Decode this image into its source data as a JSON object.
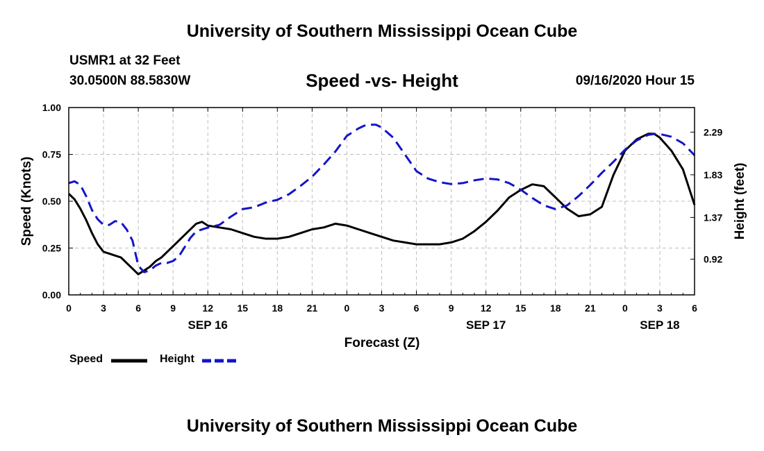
{
  "header": {
    "top_title": "University of Southern Mississippi Ocean Cube",
    "bottom_title": "University of Southern Mississippi Ocean Cube",
    "station_name": "USMR1 at 32 Feet",
    "station_location": "30.0500N 88.5830W",
    "datetime": "09/16/2020 Hour 15"
  },
  "chart_data": {
    "type": "line",
    "title": "Speed -vs- Height",
    "xlabel": "Forecast (Z)",
    "ylabel": "Speed (Knots)",
    "y2label": "Height (feet)",
    "xlim": [
      0,
      54
    ],
    "ylim": [
      0,
      1
    ],
    "y2lim": [
      0.535,
      2.555
    ],
    "grid": true,
    "x_ticks": [
      {
        "x": 0,
        "label": "0"
      },
      {
        "x": 3,
        "label": "3"
      },
      {
        "x": 6,
        "label": "6"
      },
      {
        "x": 9,
        "label": "9"
      },
      {
        "x": 12,
        "label": "12"
      },
      {
        "x": 15,
        "label": "15"
      },
      {
        "x": 18,
        "label": "18"
      },
      {
        "x": 21,
        "label": "21"
      },
      {
        "x": 24,
        "label": "0"
      },
      {
        "x": 27,
        "label": "3"
      },
      {
        "x": 30,
        "label": "6"
      },
      {
        "x": 33,
        "label": "9"
      },
      {
        "x": 36,
        "label": "12"
      },
      {
        "x": 39,
        "label": "15"
      },
      {
        "x": 42,
        "label": "18"
      },
      {
        "x": 45,
        "label": "21"
      },
      {
        "x": 48,
        "label": "0"
      },
      {
        "x": 51,
        "label": "3"
      },
      {
        "x": 54,
        "label": "6"
      }
    ],
    "date_labels": [
      {
        "x": 12,
        "label": "SEP 16"
      },
      {
        "x": 36,
        "label": "SEP 17"
      },
      {
        "x": 51,
        "label": "SEP 18"
      }
    ],
    "y_ticks": [
      {
        "value": 0,
        "label": "0.00"
      },
      {
        "value": 0.25,
        "label": "0.25"
      },
      {
        "value": 0.5,
        "label": "0.50"
      },
      {
        "value": 0.75,
        "label": "0.75"
      },
      {
        "value": 1,
        "label": "1.00"
      }
    ],
    "y2_ticks": [
      {
        "value": 0.92,
        "label": "0.92"
      },
      {
        "value": 1.37,
        "label": "1.37"
      },
      {
        "value": 1.83,
        "label": "1.83"
      },
      {
        "value": 2.29,
        "label": "2.29"
      }
    ],
    "legend": [
      {
        "name": "Speed",
        "color": "#000000",
        "dash": "solid"
      },
      {
        "name": "Height",
        "color": "#1414c8",
        "dash": "dashed"
      }
    ],
    "series": [
      {
        "name": "Speed",
        "axis": "left",
        "color": "#000000",
        "x": [
          0,
          0.5,
          1,
          1.5,
          2,
          2.5,
          3,
          3.5,
          4,
          4.5,
          5,
          5.5,
          6,
          6.5,
          7,
          7.5,
          8,
          9,
          10,
          11,
          11.5,
          12,
          13,
          14,
          15,
          16,
          17,
          18,
          19,
          20,
          21,
          22,
          23,
          24,
          25,
          26,
          27,
          28,
          29,
          30,
          31,
          32,
          33,
          34,
          35,
          36,
          37,
          38,
          39,
          40,
          41,
          41.5,
          42,
          43,
          44,
          45,
          46,
          47,
          48,
          49,
          50,
          50.5,
          51,
          52,
          53,
          54
        ],
        "values": [
          0.54,
          0.51,
          0.46,
          0.4,
          0.33,
          0.27,
          0.23,
          0.22,
          0.21,
          0.2,
          0.17,
          0.14,
          0.11,
          0.13,
          0.15,
          0.18,
          0.2,
          0.26,
          0.32,
          0.38,
          0.39,
          0.37,
          0.36,
          0.35,
          0.33,
          0.31,
          0.3,
          0.3,
          0.31,
          0.33,
          0.35,
          0.36,
          0.38,
          0.37,
          0.35,
          0.33,
          0.31,
          0.29,
          0.28,
          0.27,
          0.27,
          0.27,
          0.28,
          0.3,
          0.34,
          0.39,
          0.45,
          0.52,
          0.56,
          0.59,
          0.58,
          0.55,
          0.52,
          0.46,
          0.42,
          0.43,
          0.47,
          0.64,
          0.77,
          0.83,
          0.86,
          0.86,
          0.84,
          0.77,
          0.67,
          0.48
        ]
      },
      {
        "name": "Height",
        "axis": "right",
        "color": "#1414c8",
        "x": [
          0,
          0.5,
          1,
          1.5,
          2,
          2.5,
          3,
          3.5,
          4,
          4.5,
          5,
          5.5,
          6,
          6.5,
          7,
          7.5,
          8,
          8.5,
          9,
          9.5,
          10,
          10.5,
          11,
          12,
          13,
          14,
          15,
          16,
          17,
          18,
          19,
          20,
          21,
          22,
          23,
          24,
          25,
          25.5,
          26,
          26.5,
          27,
          28,
          29,
          30,
          31,
          32,
          33,
          34,
          35,
          36,
          37,
          38,
          39,
          40,
          41,
          42,
          43,
          44,
          45,
          46,
          47,
          48,
          49,
          50,
          50.5,
          51,
          52,
          53,
          54
        ],
        "values": [
          1.74,
          1.76,
          1.72,
          1.6,
          1.45,
          1.35,
          1.29,
          1.29,
          1.33,
          1.32,
          1.24,
          1.12,
          0.85,
          0.78,
          0.8,
          0.85,
          0.88,
          0.88,
          0.9,
          0.95,
          1.05,
          1.15,
          1.22,
          1.26,
          1.29,
          1.38,
          1.46,
          1.48,
          1.53,
          1.56,
          1.62,
          1.71,
          1.81,
          1.94,
          2.08,
          2.25,
          2.33,
          2.36,
          2.37,
          2.37,
          2.34,
          2.23,
          2.05,
          1.87,
          1.79,
          1.75,
          1.73,
          1.74,
          1.77,
          1.79,
          1.78,
          1.74,
          1.67,
          1.58,
          1.5,
          1.46,
          1.5,
          1.6,
          1.72,
          1.85,
          1.97,
          2.1,
          2.2,
          2.26,
          2.27,
          2.27,
          2.24,
          2.17,
          2.04
        ]
      }
    ]
  }
}
